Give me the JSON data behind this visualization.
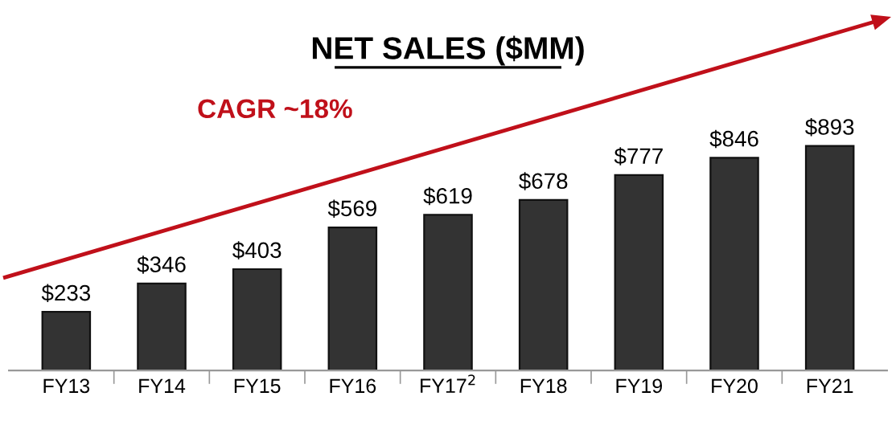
{
  "chart_data": {
    "type": "bar",
    "title": "NET SALES ($MM)",
    "categories": [
      "FY13",
      "FY14",
      "FY15",
      "FY16",
      "FY17$^{2}$",
      "FY18",
      "FY19",
      "FY20",
      "FY21"
    ],
    "values": [
      233,
      346,
      403,
      569,
      619,
      678,
      777,
      846,
      893
    ],
    "value_labels": [
      "$233",
      "$346",
      "$403",
      "$569",
      "$619",
      "$678",
      "$777",
      "$846",
      "$893"
    ],
    "color": "#333333",
    "annotations": [
      "CAGR ~18%"
    ],
    "grid": false,
    "legend": false
  }
}
